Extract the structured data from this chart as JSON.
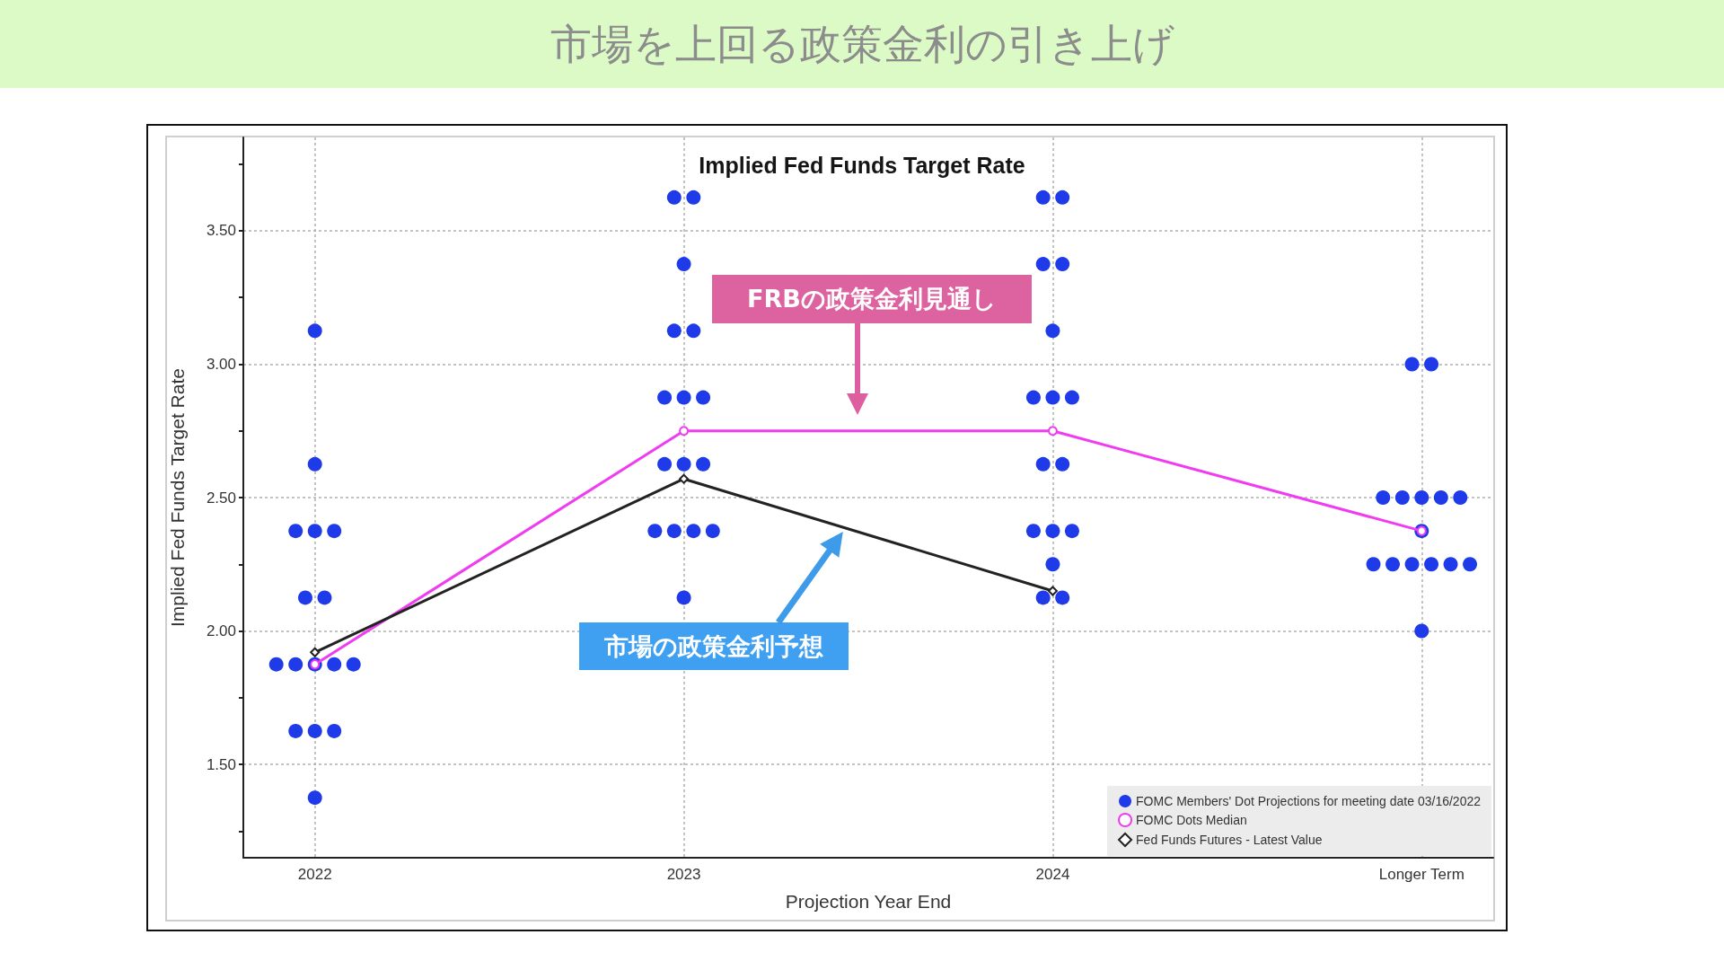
{
  "chart_data": {
    "type": "scatter",
    "title": "市場を上回る政策金利の引き上げ",
    "subtitle": "Implied Fed Funds Target Rate",
    "xlabel": "Projection Year End",
    "ylabel": "Implied Fed Funds Target Rate",
    "categories": [
      "2022",
      "2023",
      "2024",
      "Longer Term"
    ],
    "marker": "circle",
    "series": [
      {
        "name": "FOMC Members' Dot Projections for meeting date 03/16/2022",
        "color": "#1f3ae8",
        "values": [
          3.125,
          3.625,
          3.625,
          3
        ]
      },
      {
        "color": "#1f3ae8",
        "values": [
          2.625,
          3.625,
          3.625,
          3
        ]
      },
      {
        "color": "#1f3ae8",
        "values": [
          2.375,
          3.375,
          3.375,
          2.5
        ]
      },
      {
        "color": "#1f3ae8",
        "values": [
          2.375,
          3.125,
          3.375,
          2.5
        ]
      },
      {
        "color": "#1f3ae8",
        "values": [
          2.375,
          3.125,
          3.125,
          2.5
        ]
      },
      {
        "color": "#1f3ae8",
        "values": [
          2.125,
          2.875,
          2.875,
          2.5
        ]
      },
      {
        "color": "#1f3ae8",
        "values": [
          2.125,
          2.875,
          2.875,
          2.5
        ]
      },
      {
        "color": "#1f3ae8",
        "values": [
          1.875,
          2.875,
          2.875,
          2.375
        ]
      },
      {
        "color": "#1f3ae8",
        "values": [
          1.875,
          2.625,
          2.625,
          2.25
        ]
      },
      {
        "color": "#1f3ae8",
        "values": [
          1.875,
          2.625,
          2.625,
          2.25
        ]
      },
      {
        "color": "#1f3ae8",
        "values": [
          1.875,
          2.625,
          2.375,
          2.25
        ]
      },
      {
        "color": "#1f3ae8",
        "values": [
          1.875,
          2.375,
          2.375,
          2.25
        ]
      },
      {
        "color": "#1f3ae8",
        "values": [
          1.625,
          2.375,
          2.375,
          2.25
        ]
      },
      {
        "color": "#1f3ae8",
        "values": [
          1.625,
          2.375,
          2.25,
          2.25
        ]
      },
      {
        "color": "#1f3ae8",
        "values": [
          1.625,
          2.375,
          2.125,
          2
        ]
      },
      {
        "color": "#1f3ae8",
        "values": [
          1.375,
          2.125,
          2.125,
          null
        ]
      },
      {
        "name": "FOMC Dots Median",
        "type": "line",
        "color": "#f03cf0",
        "values": [
          1.875,
          2.75,
          2.75,
          2.375
        ]
      },
      {
        "name": "Fed Funds Futures - Latest Value",
        "type": "line",
        "color": "#222222",
        "marker": "diamond",
        "values": [
          1.92,
          2.57,
          2.15,
          null
        ]
      }
    ],
    "ylim": [
      1.15,
      3.85
    ],
    "yticks": [
      {
        "value": 1.25,
        "label": null
      },
      {
        "value": 1.5,
        "label": "1.50"
      },
      {
        "value": 1.75,
        "label": null
      },
      {
        "value": 2,
        "label": "2.00"
      },
      {
        "value": 2.25,
        "label": null
      },
      {
        "value": 2.5,
        "label": "2.50"
      },
      {
        "value": 2.75,
        "label": null
      },
      {
        "value": 3,
        "label": "3.00"
      },
      {
        "value": 3.25,
        "label": null
      },
      {
        "value": 3.5,
        "label": "3.50"
      },
      {
        "value": 3.75,
        "label": null
      }
    ],
    "grid": true,
    "legend": "bottom right",
    "line_style": "solid",
    "annotations": [
      "FRBの政策金利見通し",
      "市場の政策金利予想"
    ]
  }
}
